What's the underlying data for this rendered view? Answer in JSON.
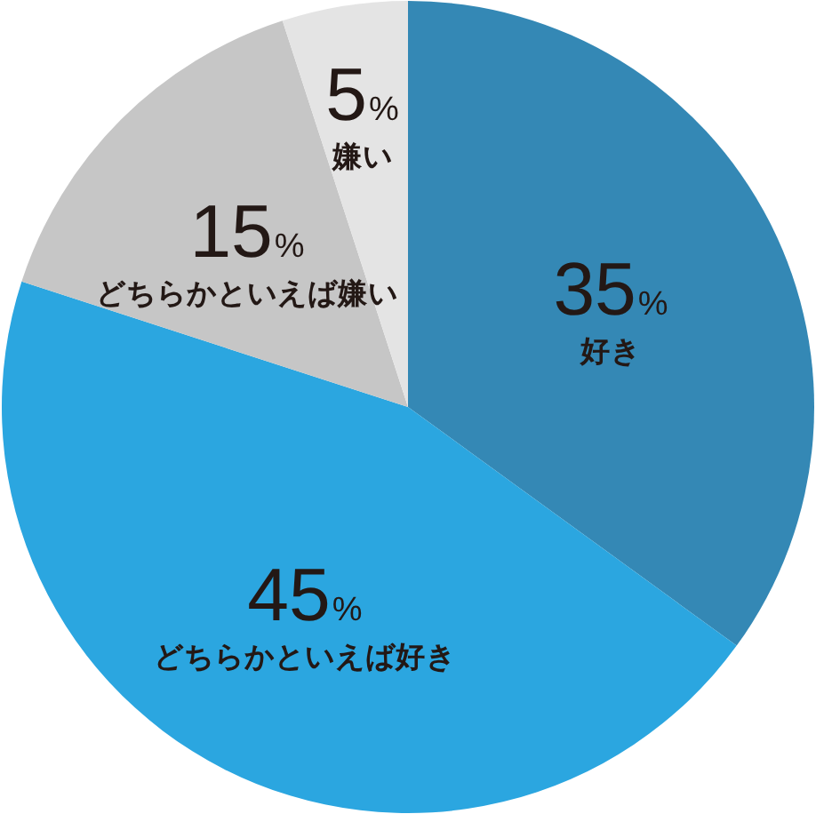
{
  "chart_data": {
    "type": "pie",
    "categories": [
      "好き",
      "どちらかといえば好き",
      "どちらかといえば嫌い",
      "嫌い"
    ],
    "values": [
      35,
      45,
      15,
      5
    ],
    "colors": [
      "#3488b5",
      "#2ba6e0",
      "#c6c6c6",
      "#e4e4e4"
    ],
    "value_labels": [
      "35%",
      "45%",
      "15%",
      "5%"
    ]
  }
}
